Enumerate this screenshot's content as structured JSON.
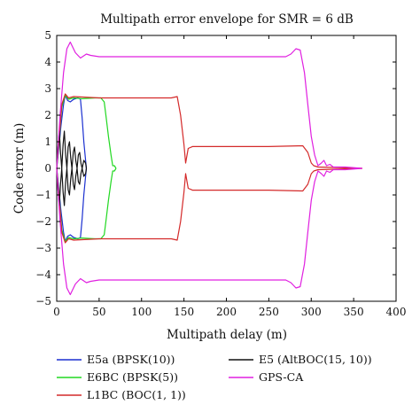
{
  "chart_data": {
    "type": "line",
    "title": "Multipath error envelope for SMR = 6 dB",
    "xlabel": "Multipath delay (m)",
    "ylabel": "Code error (m)",
    "xlim": [
      0,
      400
    ],
    "ylim": [
      -5,
      5
    ],
    "xticks": [
      0,
      50,
      100,
      150,
      200,
      250,
      300,
      350,
      400
    ],
    "yticks": [
      5,
      4,
      3,
      2,
      1,
      0,
      -1,
      -2,
      -3,
      -4,
      -5
    ],
    "grid": false,
    "legend_position": "below",
    "series": [
      {
        "name": "E5a (BPSK(10))",
        "color": "#1a2fd0",
        "upper": [
          [
            0,
            0
          ],
          [
            2,
            0.6
          ],
          [
            5,
            1.6
          ],
          [
            8,
            2.4
          ],
          [
            10,
            2.75
          ],
          [
            13,
            2.55
          ],
          [
            16,
            2.5
          ],
          [
            20,
            2.6
          ],
          [
            25,
            2.65
          ],
          [
            28,
            2.6
          ],
          [
            30,
            1.9
          ],
          [
            32,
            1.0
          ],
          [
            34,
            0.3
          ],
          [
            35,
            0
          ]
        ],
        "lower": [
          [
            0,
            0
          ],
          [
            2,
            -0.6
          ],
          [
            5,
            -1.6
          ],
          [
            8,
            -2.4
          ],
          [
            10,
            -2.75
          ],
          [
            13,
            -2.55
          ],
          [
            16,
            -2.5
          ],
          [
            20,
            -2.6
          ],
          [
            25,
            -2.65
          ],
          [
            28,
            -2.6
          ],
          [
            30,
            -1.9
          ],
          [
            32,
            -1.0
          ],
          [
            34,
            -0.3
          ],
          [
            35,
            0
          ]
        ]
      },
      {
        "name": "E6BC (BPSK(5))",
        "color": "#22d822",
        "upper": [
          [
            0,
            0
          ],
          [
            3,
            1.1
          ],
          [
            6,
            2.3
          ],
          [
            10,
            2.75
          ],
          [
            14,
            2.6
          ],
          [
            20,
            2.65
          ],
          [
            30,
            2.62
          ],
          [
            45,
            2.65
          ],
          [
            52,
            2.65
          ],
          [
            56,
            2.5
          ],
          [
            58,
            2.0
          ],
          [
            61,
            1.2
          ],
          [
            64,
            0.5
          ],
          [
            66,
            0.1
          ],
          [
            68,
            0.1
          ],
          [
            70,
            0
          ]
        ],
        "lower": [
          [
            0,
            0
          ],
          [
            3,
            -1.1
          ],
          [
            6,
            -2.3
          ],
          [
            10,
            -2.75
          ],
          [
            14,
            -2.6
          ],
          [
            20,
            -2.65
          ],
          [
            30,
            -2.62
          ],
          [
            45,
            -2.65
          ],
          [
            52,
            -2.65
          ],
          [
            56,
            -2.5
          ],
          [
            58,
            -2.0
          ],
          [
            61,
            -1.2
          ],
          [
            64,
            -0.5
          ],
          [
            66,
            -0.1
          ],
          [
            68,
            -0.1
          ],
          [
            70,
            0
          ]
        ]
      },
      {
        "name": "L1BC (BOC(1, 1))",
        "color": "#d42a2a",
        "upper": [
          [
            0,
            0
          ],
          [
            3,
            1.2
          ],
          [
            6,
            2.4
          ],
          [
            10,
            2.8
          ],
          [
            14,
            2.65
          ],
          [
            20,
            2.7
          ],
          [
            50,
            2.65
          ],
          [
            100,
            2.65
          ],
          [
            135,
            2.65
          ],
          [
            142,
            2.7
          ],
          [
            146,
            2.0
          ],
          [
            150,
            0.9
          ],
          [
            152,
            0.2
          ],
          [
            155,
            0.75
          ],
          [
            160,
            0.82
          ],
          [
            200,
            0.82
          ],
          [
            250,
            0.82
          ],
          [
            290,
            0.85
          ],
          [
            296,
            0.6
          ],
          [
            300,
            0.2
          ],
          [
            303,
            0.1
          ],
          [
            308,
            0.05
          ],
          [
            330,
            0.03
          ],
          [
            360,
            0
          ]
        ],
        "lower": [
          [
            0,
            0
          ],
          [
            3,
            -1.2
          ],
          [
            6,
            -2.4
          ],
          [
            10,
            -2.8
          ],
          [
            14,
            -2.65
          ],
          [
            20,
            -2.7
          ],
          [
            50,
            -2.65
          ],
          [
            100,
            -2.65
          ],
          [
            135,
            -2.65
          ],
          [
            142,
            -2.7
          ],
          [
            146,
            -2.0
          ],
          [
            150,
            -0.9
          ],
          [
            152,
            -0.2
          ],
          [
            155,
            -0.75
          ],
          [
            160,
            -0.82
          ],
          [
            200,
            -0.82
          ],
          [
            250,
            -0.82
          ],
          [
            290,
            -0.85
          ],
          [
            296,
            -0.6
          ],
          [
            300,
            -0.2
          ],
          [
            303,
            -0.1
          ],
          [
            308,
            -0.05
          ],
          [
            330,
            -0.03
          ],
          [
            360,
            0
          ]
        ]
      },
      {
        "name": "E5 (AltBOC(15, 10))",
        "color": "#111111",
        "upper": [
          [
            0,
            0
          ],
          [
            1.5,
            0.8
          ],
          [
            3,
            1.4
          ],
          [
            4.5,
            0.6
          ],
          [
            6,
            0
          ],
          [
            7.5,
            0.9
          ],
          [
            9,
            1.4
          ],
          [
            10.5,
            0.5
          ],
          [
            12,
            0
          ],
          [
            13.5,
            0.8
          ],
          [
            15,
            1.0
          ],
          [
            16.5,
            0.4
          ],
          [
            18,
            0
          ],
          [
            19.5,
            0.6
          ],
          [
            21,
            0.8
          ],
          [
            22.5,
            0.3
          ],
          [
            24,
            0
          ],
          [
            25.5,
            0.5
          ],
          [
            27,
            0.6
          ],
          [
            28.5,
            0.2
          ],
          [
            30,
            0
          ],
          [
            32,
            0.3
          ],
          [
            34,
            0.2
          ],
          [
            35,
            0
          ]
        ],
        "lower": [
          [
            0,
            0
          ],
          [
            1.5,
            -0.8
          ],
          [
            3,
            -1.4
          ],
          [
            4.5,
            -0.6
          ],
          [
            6,
            0
          ],
          [
            7.5,
            -0.9
          ],
          [
            9,
            -1.4
          ],
          [
            10.5,
            -0.5
          ],
          [
            12,
            0
          ],
          [
            13.5,
            -0.8
          ],
          [
            15,
            -1.0
          ],
          [
            16.5,
            -0.4
          ],
          [
            18,
            0
          ],
          [
            19.5,
            -0.6
          ],
          [
            21,
            -0.8
          ],
          [
            22.5,
            -0.3
          ],
          [
            24,
            0
          ],
          [
            25.5,
            -0.5
          ],
          [
            27,
            -0.6
          ],
          [
            28.5,
            -0.2
          ],
          [
            30,
            0
          ],
          [
            32,
            -0.3
          ],
          [
            34,
            -0.2
          ],
          [
            35,
            0
          ]
        ]
      },
      {
        "name": "GPS-CA",
        "color": "#e020e0",
        "upper": [
          [
            0,
            0
          ],
          [
            4,
            2.0
          ],
          [
            8,
            3.6
          ],
          [
            12,
            4.5
          ],
          [
            16,
            4.75
          ],
          [
            22,
            4.35
          ],
          [
            28,
            4.15
          ],
          [
            35,
            4.3
          ],
          [
            40,
            4.25
          ],
          [
            50,
            4.2
          ],
          [
            100,
            4.2
          ],
          [
            200,
            4.2
          ],
          [
            270,
            4.2
          ],
          [
            276,
            4.3
          ],
          [
            282,
            4.5
          ],
          [
            287,
            4.45
          ],
          [
            292,
            3.6
          ],
          [
            296,
            2.4
          ],
          [
            300,
            1.2
          ],
          [
            304,
            0.5
          ],
          [
            308,
            0.1
          ],
          [
            312,
            0.2
          ],
          [
            315,
            0.3
          ],
          [
            318,
            0.1
          ],
          [
            322,
            0.15
          ],
          [
            326,
            0.05
          ],
          [
            340,
            0.05
          ],
          [
            360,
            0
          ]
        ],
        "lower": [
          [
            0,
            0
          ],
          [
            4,
            -2.0
          ],
          [
            8,
            -3.6
          ],
          [
            12,
            -4.5
          ],
          [
            16,
            -4.75
          ],
          [
            22,
            -4.35
          ],
          [
            28,
            -4.15
          ],
          [
            35,
            -4.3
          ],
          [
            40,
            -4.25
          ],
          [
            50,
            -4.2
          ],
          [
            100,
            -4.2
          ],
          [
            200,
            -4.2
          ],
          [
            270,
            -4.2
          ],
          [
            276,
            -4.3
          ],
          [
            282,
            -4.5
          ],
          [
            287,
            -4.45
          ],
          [
            292,
            -3.6
          ],
          [
            296,
            -2.4
          ],
          [
            300,
            -1.2
          ],
          [
            304,
            -0.5
          ],
          [
            308,
            -0.1
          ],
          [
            312,
            -0.2
          ],
          [
            315,
            -0.3
          ],
          [
            318,
            -0.1
          ],
          [
            322,
            -0.15
          ],
          [
            326,
            -0.05
          ],
          [
            340,
            -0.05
          ],
          [
            360,
            0
          ]
        ]
      }
    ]
  }
}
